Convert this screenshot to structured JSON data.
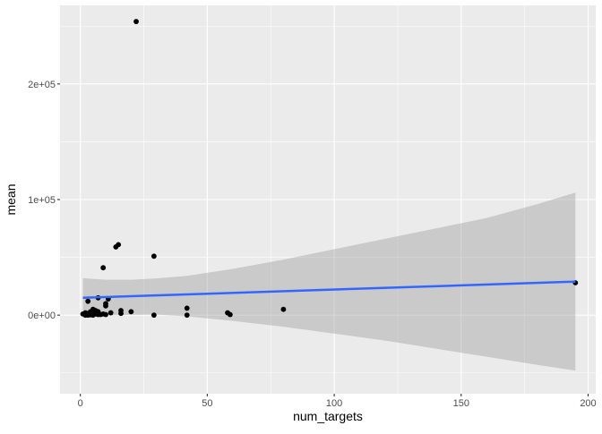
{
  "chart_data": {
    "type": "scatter",
    "title": "",
    "xlabel": "num_targets",
    "ylabel": "mean",
    "xlim": [
      -8,
      203
    ],
    "ylim": [
      -68000,
      268000
    ],
    "xticks": [
      0,
      50,
      100,
      150,
      200
    ],
    "xtick_labels": [
      "0",
      "50",
      "100",
      "150",
      "200"
    ],
    "yticks": [
      0,
      100000,
      200000
    ],
    "ytick_labels": [
      "0e+00",
      "1e+05",
      "2e+05"
    ],
    "grid": true,
    "colors": {
      "panel_background": "#ebebeb",
      "grid": "#ffffff",
      "points": "#000000",
      "smooth_line": "#3366ff",
      "confidence_band": "#999999"
    },
    "series": [
      {
        "type": "scatter",
        "x": [
          1,
          2,
          2,
          3,
          3,
          3,
          4,
          4,
          4,
          5,
          5,
          5,
          6,
          6,
          7,
          7,
          8,
          9,
          10,
          10,
          10,
          11,
          12,
          14,
          15,
          16,
          16,
          20,
          22,
          29,
          29,
          42,
          42,
          58,
          59,
          80,
          195,
          9,
          7,
          4
        ],
        "y": [
          1000,
          0,
          2000,
          12000,
          0,
          1500,
          500,
          3000,
          1000,
          5000,
          0,
          2000,
          1000,
          4000,
          15000,
          3000,
          500,
          41000,
          8000,
          10000,
          500,
          14000,
          2000,
          59000,
          61000,
          4000,
          1500,
          3000,
          254000,
          51000,
          0,
          6000,
          0,
          2000,
          500,
          5000,
          28000,
          1000,
          500,
          200
        ]
      }
    ],
    "smooth": {
      "method": "linear",
      "x": [
        1,
        195
      ],
      "y": [
        15000,
        29000
      ],
      "band_x": [
        1,
        10,
        20,
        30,
        42,
        60,
        80,
        100,
        120,
        140,
        160,
        180,
        195
      ],
      "band_lower": [
        -2000,
        -400,
        200,
        400,
        -1000,
        -5000,
        -10000,
        -16000,
        -22000,
        -29000,
        -36000,
        -43000,
        -48000
      ],
      "band_upper": [
        32000,
        30600,
        30600,
        31800,
        34000,
        40000,
        48000,
        57000,
        66000,
        75000,
        84000,
        96000,
        106000
      ]
    }
  }
}
